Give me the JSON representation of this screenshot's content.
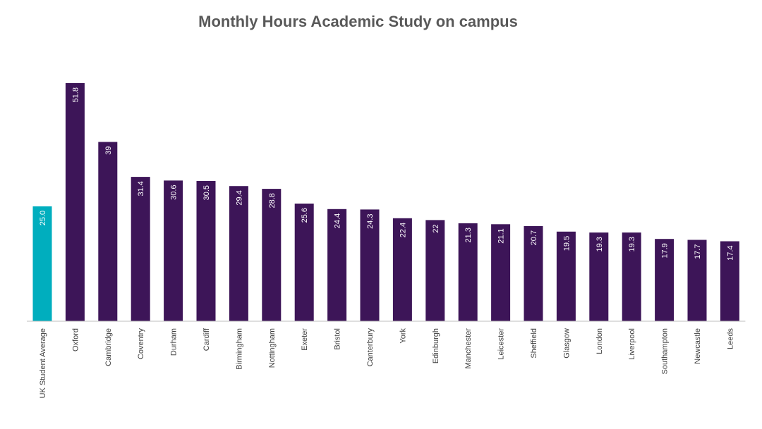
{
  "chart_data": {
    "type": "bar",
    "title": "Monthly Hours Academic Study on campus",
    "xlabel": "",
    "ylabel": "",
    "ylim": [
      0,
      51.8
    ],
    "grid": false,
    "categories": [
      "UK Student Average",
      "Oxford",
      "Cambridge",
      "Coventry",
      "Durham",
      "Cardiff",
      "Birmingham",
      "Nottingham",
      "Exeter",
      "Bristol",
      "Canterbury",
      "York",
      "Edinburgh",
      "Manchester",
      "Leicester",
      "Sheffield",
      "Glasgow",
      "London",
      "Liverpool",
      "Southampton",
      "Newcastle",
      "Leeds"
    ],
    "values": [
      25.0,
      51.8,
      39,
      31.4,
      30.6,
      30.5,
      29.4,
      28.8,
      25.6,
      24.4,
      24.3,
      22.4,
      22,
      21.3,
      21.1,
      20.7,
      19.5,
      19.3,
      19.3,
      17.9,
      17.7,
      17.4
    ],
    "value_labels": [
      "25.0",
      "51.8",
      "39",
      "31.4",
      "30.6",
      "30.5",
      "29.4",
      "28.8",
      "25.6",
      "24.4",
      "24.3",
      "22.4",
      "22",
      "21.3",
      "21.1",
      "20.7",
      "19.5",
      "19.3",
      "19.3",
      "17.9",
      "17.7",
      "17.4"
    ],
    "colors": {
      "average": "#00AEBE",
      "university": "#3D1558",
      "axis": "#BFBFBF"
    }
  }
}
